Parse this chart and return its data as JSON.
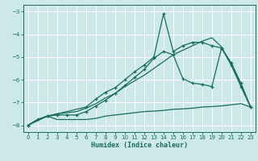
{
  "xlabel": "Humidex (Indice chaleur)",
  "bg_color": "#cce8e8",
  "grid_color": "#ffffff",
  "line_color": "#1a6b5e",
  "xlim": [
    -0.5,
    23.5
  ],
  "ylim": [
    -8.3,
    -2.7
  ],
  "yticks": [
    -8,
    -7,
    -6,
    -5,
    -4,
    -3
  ],
  "xticks": [
    0,
    1,
    2,
    3,
    4,
    5,
    6,
    7,
    8,
    9,
    10,
    11,
    12,
    13,
    14,
    15,
    16,
    17,
    18,
    19,
    20,
    21,
    22,
    23
  ],
  "series": {
    "line_flat": {
      "x": [
        0,
        1,
        2,
        3,
        4,
        5,
        6,
        7,
        8,
        9,
        10,
        11,
        12,
        13,
        14,
        15,
        16,
        17,
        18,
        19,
        20,
        21,
        22,
        23
      ],
      "y": [
        -8.0,
        -7.75,
        -7.6,
        -7.75,
        -7.75,
        -7.75,
        -7.75,
        -7.7,
        -7.6,
        -7.55,
        -7.5,
        -7.45,
        -7.4,
        -7.38,
        -7.35,
        -7.3,
        -7.28,
        -7.25,
        -7.2,
        -7.18,
        -7.15,
        -7.1,
        -7.05,
        -7.2
      ],
      "marker": false,
      "lw": 0.9
    },
    "line_rise": {
      "x": [
        0,
        1,
        2,
        3,
        4,
        5,
        6,
        7,
        8,
        9,
        10,
        11,
        12,
        13,
        14,
        15,
        16,
        17,
        18,
        19,
        20,
        21,
        22,
        23
      ],
      "y": [
        -8.0,
        -7.75,
        -7.6,
        -7.5,
        -7.45,
        -7.4,
        -7.25,
        -7.05,
        -6.8,
        -6.6,
        -6.3,
        -6.05,
        -5.8,
        -5.5,
        -5.2,
        -4.9,
        -4.7,
        -4.5,
        -4.3,
        -4.15,
        -4.55,
        -5.35,
        -6.2,
        -7.2
      ],
      "marker": false,
      "lw": 0.9
    },
    "line_spike1": {
      "x": [
        0,
        1,
        2,
        3,
        4,
        5,
        6,
        7,
        8,
        9,
        10,
        11,
        12,
        13,
        14,
        15,
        16,
        17,
        18,
        19,
        20,
        21,
        22,
        23
      ],
      "y": [
        -8.0,
        -7.75,
        -7.6,
        -7.55,
        -7.55,
        -7.55,
        -7.4,
        -7.15,
        -6.9,
        -6.6,
        -6.25,
        -5.9,
        -5.55,
        -5.05,
        -4.75,
        -4.9,
        -5.95,
        -6.15,
        -6.2,
        -6.3,
        -4.6,
        -5.25,
        -6.15,
        -7.2
      ],
      "marker": true,
      "lw": 0.9
    },
    "line_spike2": {
      "x": [
        0,
        2,
        6,
        7,
        8,
        9,
        10,
        11,
        12,
        13,
        14,
        15,
        16,
        17,
        18,
        19,
        20,
        21,
        22,
        23
      ],
      "y": [
        -8.0,
        -7.6,
        -7.2,
        -6.85,
        -6.55,
        -6.35,
        -6.0,
        -5.65,
        -5.35,
        -5.0,
        -3.1,
        -4.75,
        -4.5,
        -4.35,
        -4.35,
        -4.5,
        -4.6,
        -5.35,
        -6.3,
        -7.2
      ],
      "marker": true,
      "lw": 0.9
    }
  }
}
